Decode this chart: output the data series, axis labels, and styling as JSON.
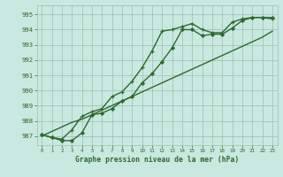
{
  "line1_y": [
    987.1,
    986.9,
    986.8,
    987.4,
    988.3,
    988.6,
    988.8,
    989.6,
    989.9,
    990.6,
    991.5,
    992.6,
    993.9,
    994.0,
    994.2,
    994.4,
    994.0,
    993.8,
    993.8,
    994.5,
    994.7,
    994.8,
    994.8,
    994.7
  ],
  "line2_y": [
    987.1,
    986.9,
    986.7,
    986.7,
    987.2,
    988.4,
    988.5,
    988.8,
    989.3,
    989.6,
    990.5,
    991.1,
    991.9,
    992.8,
    994.0,
    994.0,
    993.6,
    993.7,
    993.7,
    994.1,
    994.6,
    994.8,
    994.8,
    994.8
  ],
  "line3_y": [
    987.0,
    987.3,
    987.6,
    987.9,
    988.1,
    988.4,
    988.7,
    989.0,
    989.3,
    989.6,
    989.9,
    990.2,
    990.5,
    990.8,
    991.1,
    991.4,
    991.7,
    992.0,
    992.3,
    992.6,
    992.9,
    993.2,
    993.5,
    993.9
  ],
  "x": [
    0,
    1,
    2,
    3,
    4,
    5,
    6,
    7,
    8,
    9,
    10,
    11,
    12,
    13,
    14,
    15,
    16,
    17,
    18,
    19,
    20,
    21,
    22,
    23
  ],
  "ylim": [
    986.4,
    995.6
  ],
  "xlim": [
    -0.5,
    23.5
  ],
  "yticks": [
    987,
    988,
    989,
    990,
    991,
    992,
    993,
    994,
    995
  ],
  "xtick_labels": [
    "0",
    "1",
    "2",
    "3",
    "4",
    "5",
    "6",
    "7",
    "8",
    "9",
    "10",
    "11",
    "12",
    "13",
    "14",
    "15",
    "16",
    "17",
    "18",
    "19",
    "20",
    "21",
    "22",
    "23"
  ],
  "line_color": "#2d6a2d",
  "bg_color": "#c8e8e0",
  "grid_color": "#9dbfb0",
  "xlabel": "Graphe pression niveau de la mer (hPa)",
  "linewidth": 1.0
}
